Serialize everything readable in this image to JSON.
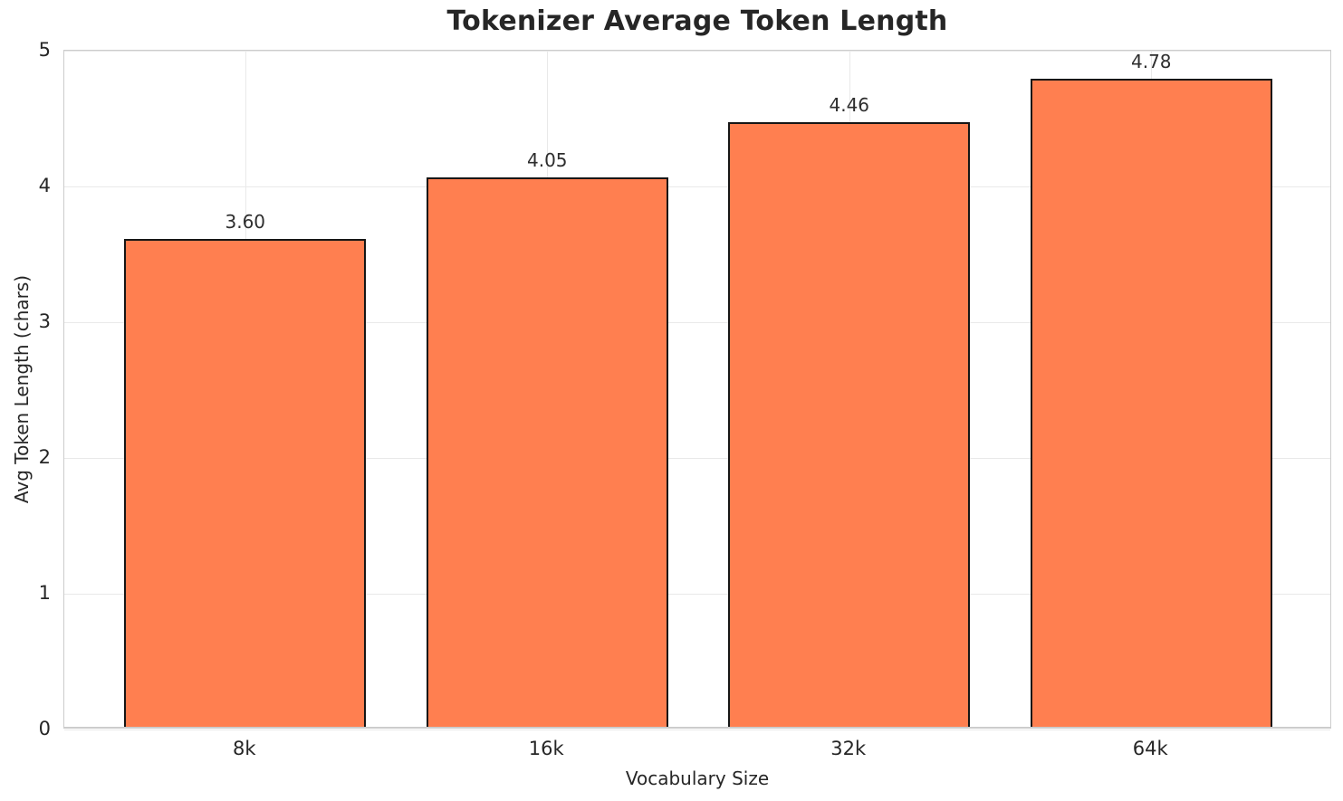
{
  "chart_data": {
    "type": "bar",
    "title": "Tokenizer Average Token Length",
    "xlabel": "Vocabulary Size",
    "ylabel": "Avg Token Length (chars)",
    "categories": [
      "8k",
      "16k",
      "32k",
      "64k"
    ],
    "values": [
      3.6,
      4.05,
      4.46,
      4.78
    ],
    "value_labels": [
      "3.60",
      "4.05",
      "4.46",
      "4.78"
    ],
    "ylim": [
      0,
      5
    ],
    "yticks": [
      "0",
      "1",
      "2",
      "3",
      "4",
      "5"
    ],
    "grid": true,
    "legend": "none",
    "colors": {
      "bar_fill": "#FF7F50",
      "bar_edge": "#161616",
      "grid": "#e9e9e9",
      "spine": "#cccccc",
      "text": "#262626",
      "background": "#ffffff"
    }
  }
}
